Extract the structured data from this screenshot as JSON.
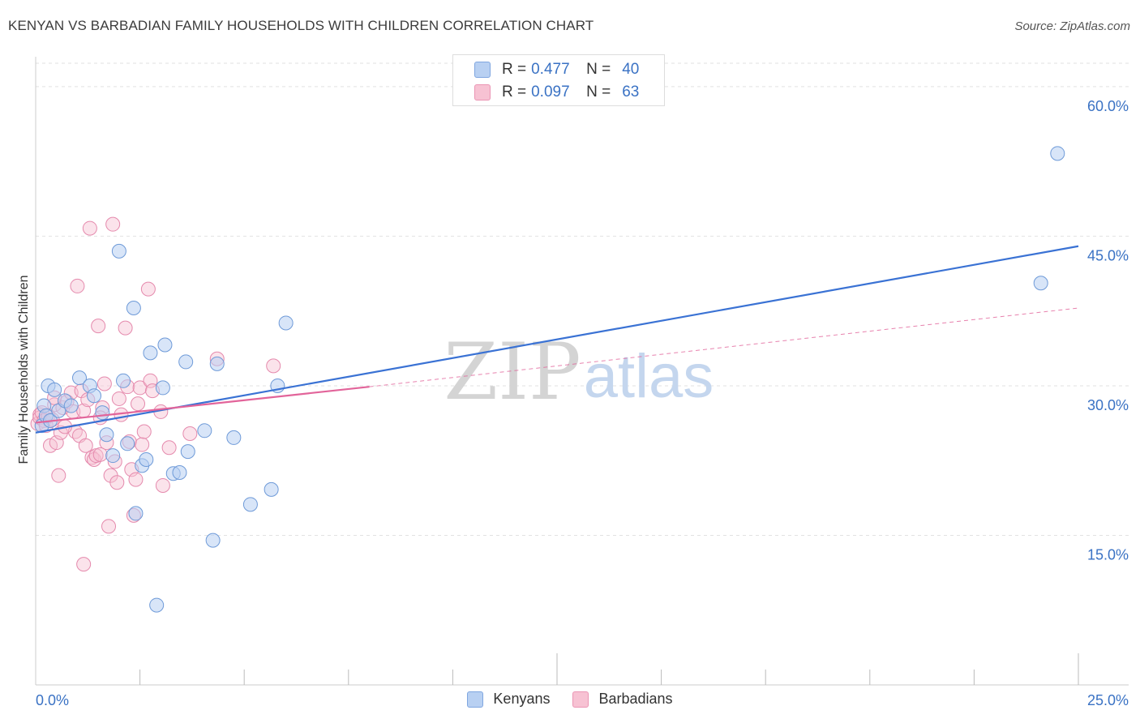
{
  "header": {
    "title": "KENYAN VS BARBADIAN FAMILY HOUSEHOLDS WITH CHILDREN CORRELATION CHART",
    "source": "Source: ZipAtlas.com"
  },
  "legend": {
    "rows": [
      {
        "r_label": "R =",
        "r_value": "0.477",
        "n_label": "N =",
        "n_value": "40"
      },
      {
        "r_label": "R =",
        "r_value": "0.097",
        "n_label": "N =",
        "n_value": "63"
      }
    ]
  },
  "bottom_legend": [
    "Kenyans",
    "Barbadians"
  ],
  "watermark": {
    "zip": "ZIP",
    "atlas": "atlas"
  },
  "colors": {
    "kenyans": "#3a72d4",
    "kenyans_fill": "#b8d0f2",
    "barbadians": "#e2649a",
    "barbadians_fill": "#f7c2d3",
    "tick_text": "#3a72c4",
    "grid": "#e2e2e2"
  },
  "chart_data": {
    "type": "scatter",
    "title": "KENYAN VS BARBADIAN FAMILY HOUSEHOLDS WITH CHILDREN CORRELATION CHART",
    "xlabel": "",
    "ylabel": "Family Households with Children",
    "xlim": [
      0,
      25
    ],
    "ylim": [
      0,
      63
    ],
    "x_tick_labels": [
      "0.0%",
      "25.0%"
    ],
    "y_ticks": [
      15,
      30,
      45,
      60
    ],
    "y_tick_labels": [
      "15.0%",
      "30.0%",
      "45.0%",
      "60.0%"
    ],
    "grid": true,
    "series": [
      {
        "name": "Kenyans",
        "r": 0.477,
        "n": 40,
        "trend": {
          "x0": 0,
          "y0": 25.3,
          "x1": 25,
          "y1": 44.0,
          "dashed_to": null
        },
        "points": [
          [
            0.15,
            26.0
          ],
          [
            0.2,
            28.0
          ],
          [
            0.25,
            27.0
          ],
          [
            0.35,
            26.5
          ],
          [
            0.3,
            30.0
          ],
          [
            0.45,
            29.6
          ],
          [
            0.55,
            27.5
          ],
          [
            0.7,
            28.5
          ],
          [
            0.85,
            28.0
          ],
          [
            1.05,
            30.8
          ],
          [
            1.3,
            30.0
          ],
          [
            1.4,
            29.0
          ],
          [
            1.6,
            27.3
          ],
          [
            1.7,
            25.1
          ],
          [
            1.85,
            23.0
          ],
          [
            2.0,
            43.5
          ],
          [
            2.1,
            30.5
          ],
          [
            2.2,
            24.2
          ],
          [
            2.35,
            37.8
          ],
          [
            2.4,
            17.2
          ],
          [
            2.55,
            22.0
          ],
          [
            2.65,
            22.6
          ],
          [
            2.75,
            33.3
          ],
          [
            2.9,
            8.0
          ],
          [
            3.05,
            29.8
          ],
          [
            3.1,
            34.1
          ],
          [
            3.3,
            21.2
          ],
          [
            3.45,
            21.3
          ],
          [
            3.6,
            32.4
          ],
          [
            3.65,
            23.4
          ],
          [
            4.05,
            25.5
          ],
          [
            4.25,
            14.5
          ],
          [
            4.35,
            32.2
          ],
          [
            4.75,
            24.8
          ],
          [
            5.15,
            18.1
          ],
          [
            5.65,
            19.6
          ],
          [
            5.8,
            30.0
          ],
          [
            6.0,
            36.3
          ],
          [
            24.5,
            53.3
          ],
          [
            24.1,
            40.3
          ]
        ]
      },
      {
        "name": "Barbadians",
        "r": 0.097,
        "n": 63,
        "trend": {
          "x0": 0,
          "y0": 26.3,
          "x1": 8.0,
          "y1": 29.9,
          "dashed_to": {
            "x": 25,
            "y": 37.8
          }
        },
        "points": [
          [
            0.05,
            26.2
          ],
          [
            0.1,
            27.1
          ],
          [
            0.1,
            26.8
          ],
          [
            0.15,
            27.3
          ],
          [
            0.2,
            26.5
          ],
          [
            0.25,
            26.0
          ],
          [
            0.3,
            27.0
          ],
          [
            0.35,
            24.0
          ],
          [
            0.4,
            26.6
          ],
          [
            0.45,
            28.1
          ],
          [
            0.5,
            24.3
          ],
          [
            0.55,
            21.0
          ],
          [
            0.6,
            25.3
          ],
          [
            0.65,
            27.8
          ],
          [
            0.75,
            28.4
          ],
          [
            0.85,
            29.3
          ],
          [
            0.9,
            27.4
          ],
          [
            0.95,
            25.4
          ],
          [
            1.0,
            40.0
          ],
          [
            1.05,
            25.0
          ],
          [
            1.1,
            29.5
          ],
          [
            1.15,
            27.5
          ],
          [
            1.2,
            24.0
          ],
          [
            1.25,
            28.6
          ],
          [
            1.3,
            45.8
          ],
          [
            1.35,
            22.8
          ],
          [
            1.4,
            22.6
          ],
          [
            1.45,
            23.0
          ],
          [
            1.5,
            36.0
          ],
          [
            1.55,
            23.1
          ],
          [
            1.6,
            27.8
          ],
          [
            1.65,
            30.2
          ],
          [
            1.7,
            24.3
          ],
          [
            1.75,
            15.9
          ],
          [
            1.8,
            21.0
          ],
          [
            1.85,
            46.2
          ],
          [
            1.9,
            22.4
          ],
          [
            1.95,
            20.3
          ],
          [
            2.0,
            28.7
          ],
          [
            2.05,
            27.1
          ],
          [
            2.15,
            35.8
          ],
          [
            2.2,
            29.9
          ],
          [
            2.25,
            24.4
          ],
          [
            2.3,
            21.6
          ],
          [
            2.35,
            17.0
          ],
          [
            2.4,
            20.6
          ],
          [
            2.45,
            28.2
          ],
          [
            2.5,
            29.8
          ],
          [
            2.55,
            24.1
          ],
          [
            2.6,
            25.4
          ],
          [
            2.7,
            39.7
          ],
          [
            2.75,
            30.5
          ],
          [
            2.8,
            29.5
          ],
          [
            3.0,
            27.4
          ],
          [
            3.05,
            20.0
          ],
          [
            3.2,
            23.8
          ],
          [
            3.7,
            25.2
          ],
          [
            4.35,
            32.7
          ],
          [
            5.7,
            32.0
          ],
          [
            1.15,
            12.1
          ],
          [
            0.45,
            28.8
          ],
          [
            0.7,
            25.9
          ],
          [
            1.55,
            26.8
          ]
        ]
      }
    ]
  }
}
